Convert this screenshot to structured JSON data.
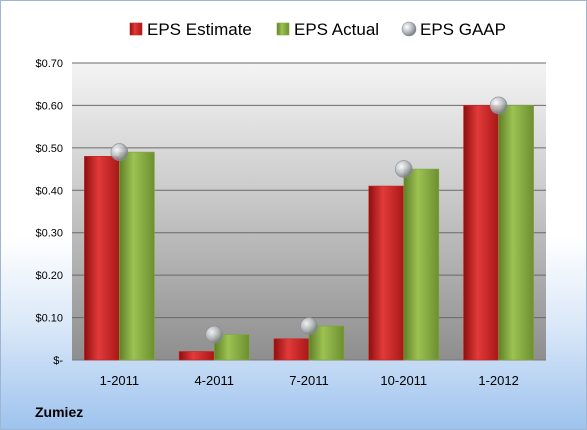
{
  "company": "Zumiez",
  "colors": {
    "estimate": "#cc1f1f",
    "actual": "#80a83c",
    "gaap": "#b8bcc2"
  },
  "chart_data": {
    "type": "bar",
    "title": "",
    "xlabel": "",
    "ylabel": "",
    "ylim": [
      0,
      0.7
    ],
    "yticks": [
      {
        "value": 0,
        "label": "$-"
      },
      {
        "value": 0.1,
        "label": "$0.10"
      },
      {
        "value": 0.2,
        "label": "$0.20"
      },
      {
        "value": 0.3,
        "label": "$0.30"
      },
      {
        "value": 0.4,
        "label": "$0.40"
      },
      {
        "value": 0.5,
        "label": "$0.50"
      },
      {
        "value": 0.6,
        "label": "$0.60"
      },
      {
        "value": 0.7,
        "label": "$0.70"
      }
    ],
    "categories": [
      "1-2011",
      "4-2011",
      "7-2011",
      "10-2011",
      "1-2012"
    ],
    "series": [
      {
        "name": "EPS Estimate",
        "kind": "bar",
        "values": [
          0.48,
          0.02,
          0.05,
          0.41,
          0.6
        ]
      },
      {
        "name": "EPS Actual",
        "kind": "bar",
        "values": [
          0.49,
          0.06,
          0.08,
          0.45,
          0.6
        ]
      },
      {
        "name": "EPS GAAP",
        "kind": "marker",
        "values": [
          0.49,
          0.06,
          0.08,
          0.45,
          0.6
        ]
      }
    ],
    "grid": true,
    "legend_position": "top"
  }
}
